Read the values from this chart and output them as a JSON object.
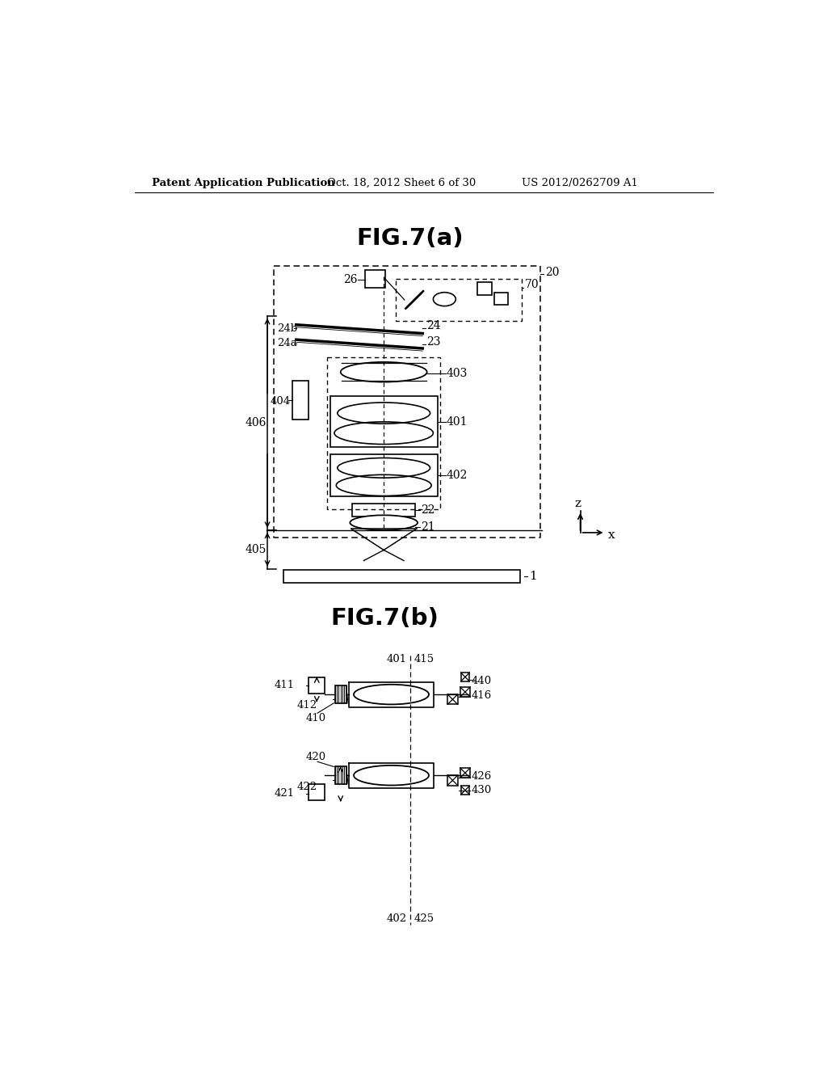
{
  "background_color": "#ffffff",
  "header_text": "Patent Application Publication",
  "header_date": "Oct. 18, 2012",
  "header_sheet": "Sheet 6 of 30",
  "header_patent": "US 2012/0262709 A1",
  "fig_a_title": "FIG.7(a)",
  "fig_b_title": "FIG.7(b)"
}
